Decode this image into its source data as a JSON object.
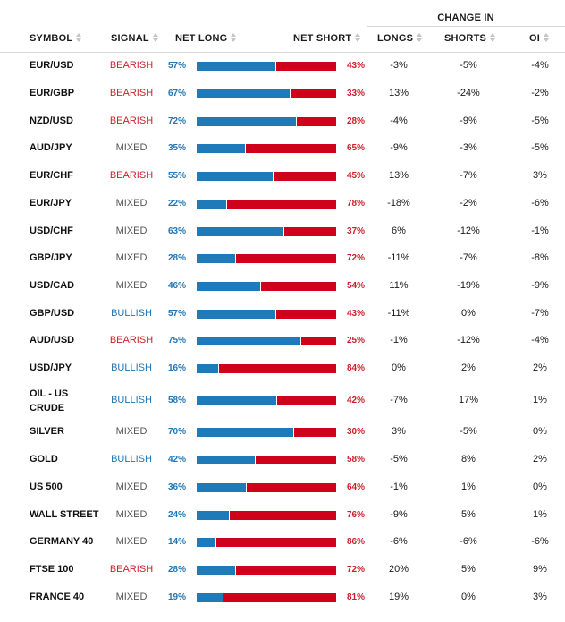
{
  "header": {
    "change_in": "CHANGE IN",
    "symbol": "SYMBOL",
    "signal": "SIGNAL",
    "net_long": "NET LONG",
    "net_short": "NET SHORT",
    "longs": "LONGS",
    "shorts": "SHORTS",
    "oi": "OI"
  },
  "colors": {
    "long": "#1f7ab9",
    "short": "#d0021b",
    "bearish": "#cc1f2b",
    "bullish": "#2176b3",
    "mixed": "#555555"
  },
  "rows": [
    {
      "symbol": "EUR/USD",
      "signal": "BEARISH",
      "net_long": "57%",
      "net_short": "43%",
      "long_fraction": 0.57,
      "longs": "-3%",
      "shorts": "-5%",
      "oi": "-4%"
    },
    {
      "symbol": "EUR/GBP",
      "signal": "BEARISH",
      "net_long": "67%",
      "net_short": "33%",
      "long_fraction": 0.67,
      "longs": "13%",
      "shorts": "-24%",
      "oi": "-2%"
    },
    {
      "symbol": "NZD/USD",
      "signal": "BEARISH",
      "net_long": "72%",
      "net_short": "28%",
      "long_fraction": 0.72,
      "longs": "-4%",
      "shorts": "-9%",
      "oi": "-5%"
    },
    {
      "symbol": "AUD/JPY",
      "signal": "MIXED",
      "net_long": "35%",
      "net_short": "65%",
      "long_fraction": 0.35,
      "longs": "-9%",
      "shorts": "-3%",
      "oi": "-5%"
    },
    {
      "symbol": "EUR/CHF",
      "signal": "BEARISH",
      "net_long": "55%",
      "net_short": "45%",
      "long_fraction": 0.55,
      "longs": "13%",
      "shorts": "-7%",
      "oi": "3%"
    },
    {
      "symbol": "EUR/JPY",
      "signal": "MIXED",
      "net_long": "22%",
      "net_short": "78%",
      "long_fraction": 0.22,
      "longs": "-18%",
      "shorts": "-2%",
      "oi": "-6%"
    },
    {
      "symbol": "USD/CHF",
      "signal": "MIXED",
      "net_long": "63%",
      "net_short": "37%",
      "long_fraction": 0.63,
      "longs": "6%",
      "shorts": "-12%",
      "oi": "-1%"
    },
    {
      "symbol": "GBP/JPY",
      "signal": "MIXED",
      "net_long": "28%",
      "net_short": "72%",
      "long_fraction": 0.28,
      "longs": "-11%",
      "shorts": "-7%",
      "oi": "-8%"
    },
    {
      "symbol": "USD/CAD",
      "signal": "MIXED",
      "net_long": "46%",
      "net_short": "54%",
      "long_fraction": 0.46,
      "longs": "11%",
      "shorts": "-19%",
      "oi": "-9%"
    },
    {
      "symbol": "GBP/USD",
      "signal": "BULLISH",
      "net_long": "57%",
      "net_short": "43%",
      "long_fraction": 0.57,
      "longs": "-11%",
      "shorts": "0%",
      "oi": "-7%"
    },
    {
      "symbol": "AUD/USD",
      "signal": "BEARISH",
      "net_long": "75%",
      "net_short": "25%",
      "long_fraction": 0.75,
      "longs": "-1%",
      "shorts": "-12%",
      "oi": "-4%"
    },
    {
      "symbol": "USD/JPY",
      "signal": "BULLISH",
      "net_long": "16%",
      "net_short": "84%",
      "long_fraction": 0.16,
      "longs": "0%",
      "shorts": "2%",
      "oi": "2%"
    },
    {
      "symbol": "OIL - US CRUDE",
      "signal": "BULLISH",
      "net_long": "58%",
      "net_short": "42%",
      "long_fraction": 0.58,
      "longs": "-7%",
      "shorts": "17%",
      "oi": "1%"
    },
    {
      "symbol": "SILVER",
      "signal": "MIXED",
      "net_long": "70%",
      "net_short": "30%",
      "long_fraction": 0.7,
      "longs": "3%",
      "shorts": "-5%",
      "oi": "0%"
    },
    {
      "symbol": "GOLD",
      "signal": "BULLISH",
      "net_long": "42%",
      "net_short": "58%",
      "long_fraction": 0.42,
      "longs": "-5%",
      "shorts": "8%",
      "oi": "2%"
    },
    {
      "symbol": "US 500",
      "signal": "MIXED",
      "net_long": "36%",
      "net_short": "64%",
      "long_fraction": 0.36,
      "longs": "-1%",
      "shorts": "1%",
      "oi": "0%"
    },
    {
      "symbol": "WALL STREET",
      "signal": "MIXED",
      "net_long": "24%",
      "net_short": "76%",
      "long_fraction": 0.24,
      "longs": "-9%",
      "shorts": "5%",
      "oi": "1%"
    },
    {
      "symbol": "GERMANY 40",
      "signal": "MIXED",
      "net_long": "14%",
      "net_short": "86%",
      "long_fraction": 0.14,
      "longs": "-6%",
      "shorts": "-6%",
      "oi": "-6%"
    },
    {
      "symbol": "FTSE 100",
      "signal": "BEARISH",
      "net_long": "28%",
      "net_short": "72%",
      "long_fraction": 0.28,
      "longs": "20%",
      "shorts": "5%",
      "oi": "9%"
    },
    {
      "symbol": "FRANCE 40",
      "signal": "MIXED",
      "net_long": "19%",
      "net_short": "81%",
      "long_fraction": 0.19,
      "longs": "19%",
      "shorts": "0%",
      "oi": "3%"
    }
  ]
}
